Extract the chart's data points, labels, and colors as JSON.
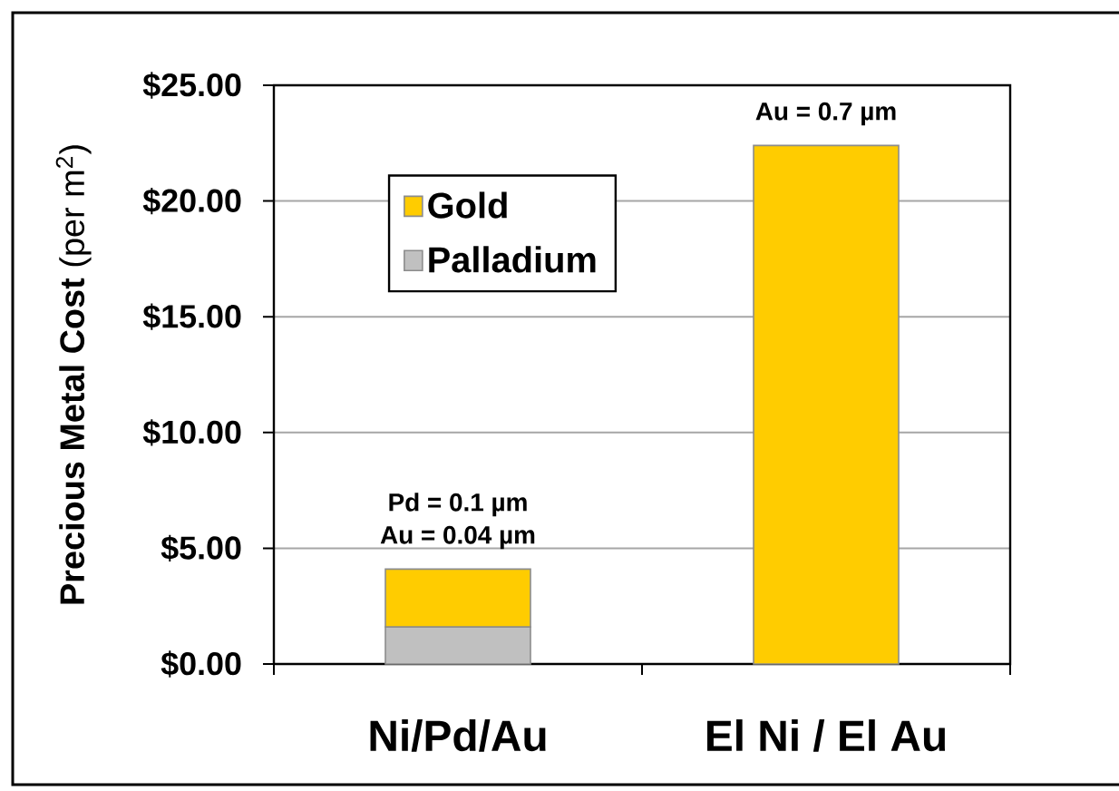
{
  "chart_data": {
    "type": "bar",
    "stacked": true,
    "categories": [
      "Ni/Pd/Au",
      "El Ni / El Au"
    ],
    "series": [
      {
        "name": "Palladium",
        "color": "#c0c0c0",
        "values": [
          1.6,
          null
        ]
      },
      {
        "name": "Gold",
        "color": "#ffcc00",
        "values": [
          2.5,
          22.4
        ]
      }
    ],
    "ylabel": "**Precious Metal Cost** (per m$^{2}$)",
    "ylim": [
      0,
      25
    ],
    "yticks": [
      {
        "value": 0,
        "label": "$0.00"
      },
      {
        "value": 5,
        "label": "$5.00"
      },
      {
        "value": 10,
        "label": "$10.00"
      },
      {
        "value": 15,
        "label": "$15.00"
      },
      {
        "value": 20,
        "label": "$20.00"
      },
      {
        "value": 25,
        "label": "$25.00"
      }
    ],
    "grid": "y",
    "legend": "top left",
    "annotations": [
      {
        "text": "Pd = 0.1 µm",
        "x": "Ni/Pd/Au",
        "y": 4.1
      },
      {
        "text": "Au = 0.04 µm",
        "x": "Ni/Pd/Au",
        "y": 4.1
      },
      {
        "text": "Au = 0.7 µm",
        "x": "El Ni / El Au",
        "y": 22.4
      }
    ]
  }
}
